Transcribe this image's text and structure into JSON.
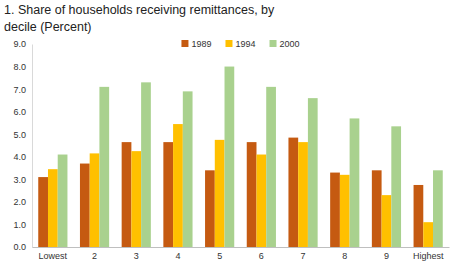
{
  "chart_data": {
    "type": "bar",
    "title": "1. Share of households receiving remittances, by decile (Percent)",
    "categories": [
      "Lowest",
      "2",
      "3",
      "4",
      "5",
      "6",
      "7",
      "8",
      "9",
      "Highest"
    ],
    "series": [
      {
        "name": "1989",
        "color": "#c55a11",
        "values": [
          3.1,
          3.7,
          4.65,
          4.65,
          3.4,
          4.65,
          4.85,
          3.3,
          3.4,
          2.75
        ]
      },
      {
        "name": "1994",
        "color": "#ffc000",
        "values": [
          3.45,
          4.15,
          4.25,
          5.45,
          4.75,
          4.1,
          4.65,
          3.2,
          2.3,
          1.1
        ]
      },
      {
        "name": "2000",
        "color": "#a9d18e",
        "values": [
          4.1,
          7.1,
          7.3,
          6.9,
          8.0,
          7.1,
          6.6,
          5.7,
          5.35,
          3.4
        ]
      }
    ],
    "ylim": [
      0,
      9
    ],
    "yticks": [
      {
        "value": 0,
        "label": "0.0"
      },
      {
        "value": 1,
        "label": "1.0"
      },
      {
        "value": 2,
        "label": "2.0"
      },
      {
        "value": 3,
        "label": "3.0"
      },
      {
        "value": 4,
        "label": "4.0"
      },
      {
        "value": 5,
        "label": "5.0"
      },
      {
        "value": 6,
        "label": "6.0"
      },
      {
        "value": 7,
        "label": "7.0"
      },
      {
        "value": 8,
        "label": "8.0"
      },
      {
        "value": 9,
        "label": "9.0"
      }
    ],
    "grid": false,
    "legend": "top"
  }
}
